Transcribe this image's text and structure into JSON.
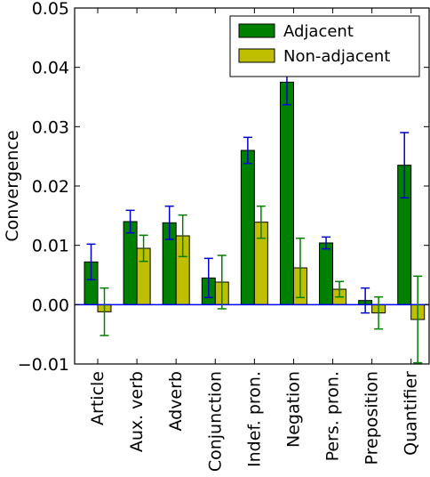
{
  "chart_data": {
    "type": "bar",
    "title": "",
    "xlabel": "",
    "ylabel": "Convergence",
    "ylim": [
      -0.01,
      0.05
    ],
    "yticks": [
      -0.01,
      0.0,
      0.01,
      0.02,
      0.03,
      0.04,
      0.05
    ],
    "ytick_labels": [
      "−0.01",
      "0.00",
      "0.01",
      "0.02",
      "0.03",
      "0.04",
      "0.05"
    ],
    "grid": false,
    "legend_position": "top-right",
    "zero_line_color": "#0000ff",
    "categories": [
      "Article",
      "Aux. verb",
      "Adverb",
      "Conjunction",
      "Indef. pron.",
      "Negation",
      "Pers. pron.",
      "Preposition",
      "Quantifier"
    ],
    "series": [
      {
        "name": "Adjacent",
        "color": "#008000",
        "error_color": "#0000cc",
        "values": [
          0.0072,
          0.014,
          0.0138,
          0.0045,
          0.026,
          0.0375,
          0.0104,
          0.0007,
          0.0235
        ],
        "errors": [
          0.003,
          0.0019,
          0.0028,
          0.0033,
          0.0022,
          0.0038,
          0.001,
          0.0021,
          0.0055
        ]
      },
      {
        "name": "Non-adjacent",
        "color": "#bfbf00",
        "error_color": "#008000",
        "values": [
          -0.0012,
          0.0095,
          0.0116,
          0.0038,
          0.0139,
          0.0062,
          0.0026,
          -0.0014,
          -0.0025
        ],
        "errors": [
          0.004,
          0.0022,
          0.0035,
          0.0045,
          0.0027,
          0.005,
          0.0013,
          0.0027,
          0.0073
        ]
      }
    ]
  }
}
